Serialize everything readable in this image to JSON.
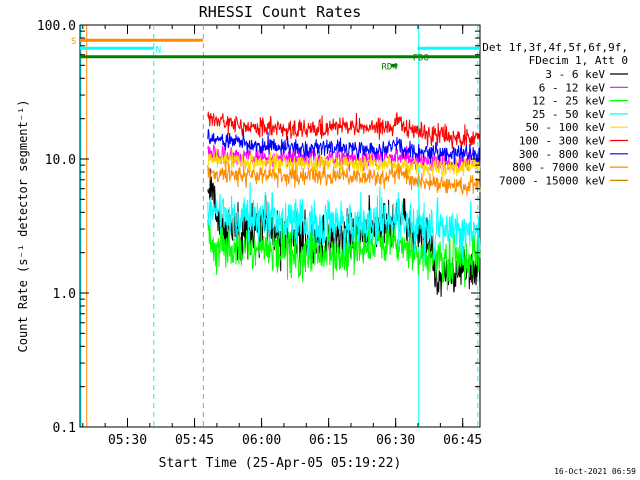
{
  "chart_data": {
    "type": "line",
    "title": "RHESSI Count Rates",
    "xlabel": "Start Time (25-Apr-05 05:19:22)",
    "ylabel": "Count Rate (s⁻¹ detector segment⁻¹)",
    "yscale": "log",
    "ylim": [
      0.1,
      100.0
    ],
    "xlim_minutes": [
      0,
      89.5
    ],
    "x_ticks": [
      {
        "label": "05:30",
        "minute": 10.63
      },
      {
        "label": "05:45",
        "minute": 25.63
      },
      {
        "label": "06:00",
        "minute": 40.63
      },
      {
        "label": "06:15",
        "minute": 55.63
      },
      {
        "label": "06:30",
        "minute": 70.63
      },
      {
        "label": "06:45",
        "minute": 85.63
      }
    ],
    "y_ticks": [
      {
        "label": "100.0",
        "value": 100.0
      },
      {
        "label": "10.0",
        "value": 10.0
      },
      {
        "label": "1.0",
        "value": 1.0
      },
      {
        "label": "0.1",
        "value": 0.1
      }
    ],
    "legend_header": [
      "Det 1f,3f,4f,5f,6f,9f,",
      "FDecim 1, Att 0"
    ],
    "series": [
      {
        "name": "3 - 6 keV",
        "color": "#000000",
        "points": [
          [
            28.6,
            6.0
          ],
          [
            29.5,
            5.5
          ],
          [
            31,
            3.5
          ],
          [
            33,
            3.0
          ],
          [
            38,
            2.9
          ],
          [
            45,
            2.7
          ],
          [
            55,
            2.5
          ],
          [
            61,
            2.7
          ],
          [
            65,
            2.9
          ],
          [
            70.5,
            3.3
          ],
          [
            71,
            4.5
          ],
          [
            72.5,
            3.4
          ],
          [
            75,
            2.8
          ],
          [
            78,
            2.5
          ],
          [
            80,
            1.3
          ],
          [
            85,
            1.4
          ],
          [
            89.5,
            1.5
          ]
        ]
      },
      {
        "name": "6 - 12 keV",
        "color": "#ff00ff",
        "points": [
          [
            28.6,
            11.5
          ],
          [
            32,
            10.5
          ],
          [
            40,
            10.3
          ],
          [
            50,
            10.0
          ],
          [
            60,
            10.2
          ],
          [
            68,
            10.2
          ],
          [
            72,
            11.0
          ],
          [
            75,
            9.8
          ],
          [
            80,
            9.5
          ],
          [
            89.5,
            9.6
          ]
        ]
      },
      {
        "name": "12 - 25 keV",
        "color": "#00ff00",
        "points": [
          [
            28.6,
            2.4
          ],
          [
            32,
            2.2
          ],
          [
            40,
            2.1
          ],
          [
            50,
            2.0
          ],
          [
            56,
            1.9
          ],
          [
            61,
            2.1
          ],
          [
            66,
            2.2
          ],
          [
            70,
            2.2
          ],
          [
            73,
            2.1
          ],
          [
            76,
            1.9
          ],
          [
            80,
            1.7
          ],
          [
            89.5,
            1.8
          ]
        ]
      },
      {
        "name": "25 - 50 keV",
        "color": "#00ffff",
        "points": [
          [
            28.6,
            4.3
          ],
          [
            32,
            3.8
          ],
          [
            40,
            3.6
          ],
          [
            50,
            3.4
          ],
          [
            57,
            3.2
          ],
          [
            61,
            3.4
          ],
          [
            66,
            3.5
          ],
          [
            70,
            3.6
          ],
          [
            74,
            3.2
          ],
          [
            80,
            3.0
          ],
          [
            89.5,
            3.0
          ]
        ]
      },
      {
        "name": "50 - 100 keV",
        "color": "#ffd700",
        "points": [
          [
            28.6,
            10.0
          ],
          [
            40,
            9.4
          ],
          [
            55,
            9.2
          ],
          [
            68,
            9.2
          ],
          [
            75,
            8.8
          ],
          [
            80,
            8.6
          ],
          [
            89.5,
            8.7
          ]
        ]
      },
      {
        "name": "100 - 300 keV",
        "color": "#ff0000",
        "points": [
          [
            28.6,
            21.0
          ],
          [
            30,
            19.0
          ],
          [
            35,
            18.0
          ],
          [
            40,
            17.3
          ],
          [
            47,
            16.8
          ],
          [
            55,
            17.0
          ],
          [
            62,
            17.5
          ],
          [
            68,
            17.0
          ],
          [
            70.5,
            17.5
          ],
          [
            71.5,
            21.0
          ],
          [
            72,
            17.0
          ],
          [
            75,
            16.0
          ],
          [
            80,
            15.0
          ],
          [
            89.5,
            14.0
          ]
        ]
      },
      {
        "name": "300 - 800 keV",
        "color": "#0000ff",
        "points": [
          [
            28.6,
            14.5
          ],
          [
            32,
            13.5
          ],
          [
            40,
            12.8
          ],
          [
            50,
            12.2
          ],
          [
            60,
            12.0
          ],
          [
            68,
            11.8
          ],
          [
            71,
            12.8
          ],
          [
            72,
            11.5
          ],
          [
            78,
            11.0
          ],
          [
            89.5,
            11.0
          ]
        ]
      },
      {
        "name": "800 - 7000 keV",
        "color": "#ff8c00",
        "points": [
          [
            28.6,
            8.3
          ],
          [
            32,
            7.8
          ],
          [
            40,
            7.6
          ],
          [
            50,
            7.4
          ],
          [
            60,
            7.4
          ],
          [
            68,
            7.3
          ],
          [
            71,
            7.9
          ],
          [
            75,
            6.9
          ],
          [
            82,
            6.4
          ],
          [
            89.5,
            6.3
          ]
        ]
      },
      {
        "name": "7000 - 15000 keV",
        "color": "#cd8500",
        "points": []
      }
    ],
    "annotations": [
      {
        "text": "S",
        "color": "#ff8c00",
        "minute": 0,
        "value": 77
      },
      {
        "text": "N",
        "color": "#00ffff",
        "minute": 16.5,
        "value": 67
      },
      {
        "text": "RD4",
        "color": "#008000",
        "minute": 67,
        "value": 50
      },
      {
        "text": "FDO",
        "color": "#008000",
        "minute": 74,
        "value": 58
      }
    ],
    "flag_bars": [
      {
        "name": "saa-flag",
        "color": "#ff8c00",
        "value": 77,
        "from": 0,
        "to": 27.5
      },
      {
        "name": "night-flag",
        "color": "#00ffff",
        "value": 67,
        "from": 0,
        "to": 16.5
      },
      {
        "name": "night-flag",
        "color": "#00ffff",
        "value": 67,
        "from": 75.5,
        "to": 89.5
      },
      {
        "name": "decimation-flag",
        "color": "#008000",
        "value": 58,
        "from": 0,
        "to": 89.5
      },
      {
        "name": "rd4-flag",
        "color": "#008000",
        "value": 50,
        "from": 69.5,
        "to": 71
      }
    ],
    "vertical_lines": [
      {
        "name": "saa-start-line",
        "minute": 1.5,
        "color": "#ff8c00",
        "style": "solid"
      },
      {
        "name": "saa-end-line",
        "minute": 27.6,
        "color": "#ff8c00",
        "style": "dashed"
      },
      {
        "name": "night-end-line",
        "minute": 16.5,
        "color": "#00ffff",
        "style": "dashed"
      },
      {
        "name": "night-start-line",
        "minute": 75.8,
        "color": "#00ffff",
        "style": "solid"
      },
      {
        "name": "night-end-line-2",
        "minute": 89.0,
        "color": "#00ffff",
        "style": "dashed"
      },
      {
        "name": "left-edge-line",
        "minute": 0.2,
        "color": "#00ffff",
        "style": "solid"
      }
    ]
  },
  "footer": {
    "timestamp": "16-Oct-2021 06:59"
  }
}
